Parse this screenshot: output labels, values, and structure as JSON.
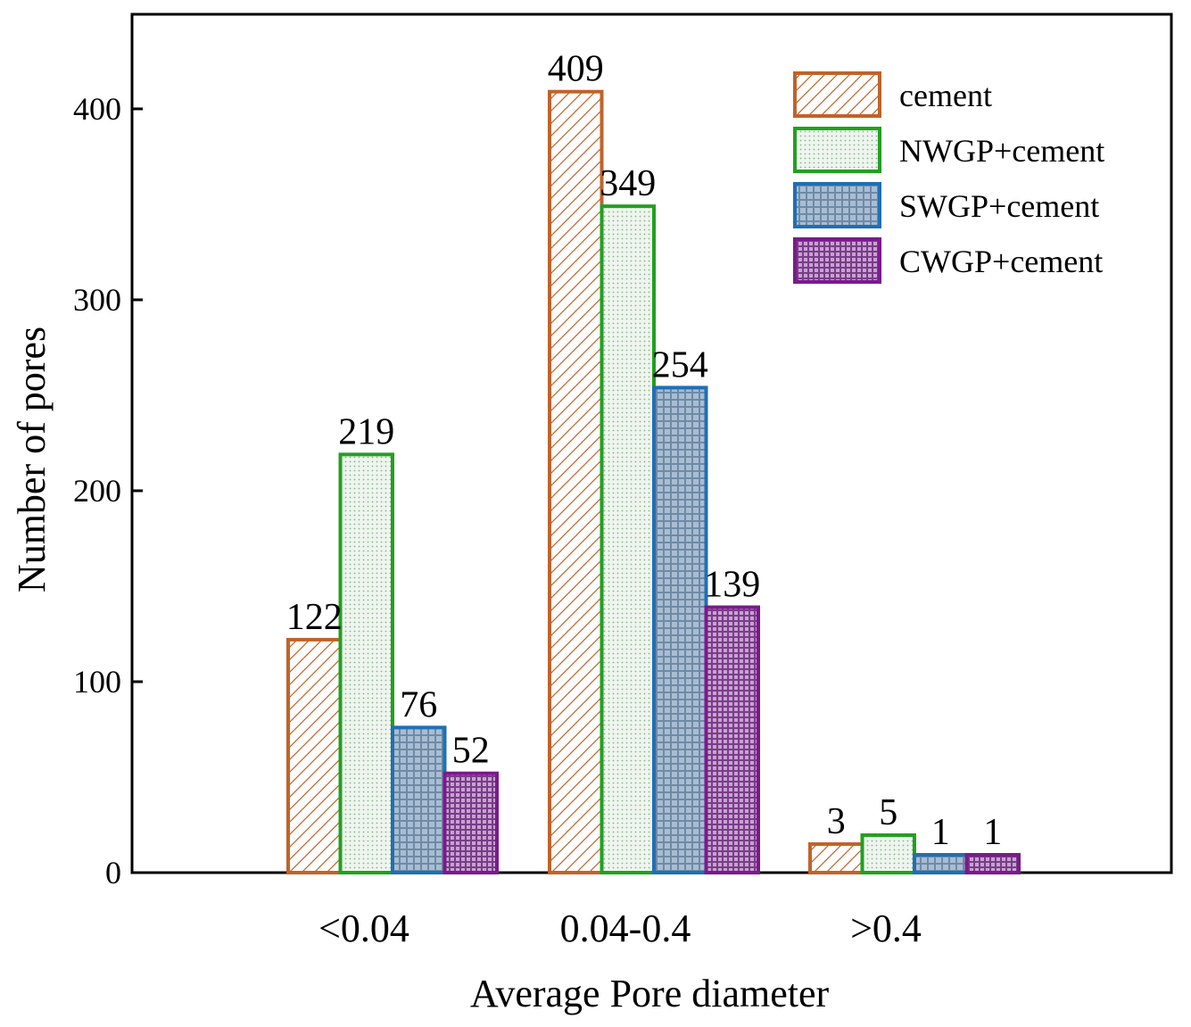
{
  "chart_data": {
    "type": "bar",
    "title": "",
    "xlabel": "Average Pore diameter",
    "ylabel": "Number of pores",
    "categories": [
      "<0.04",
      "0.04-0.4",
      ">0.4"
    ],
    "series": [
      {
        "name": "cement",
        "values": [
          122,
          409,
          3
        ],
        "labels": [
          "122",
          "409",
          "3"
        ],
        "color": "#c0632a",
        "pattern": "diagonal-hatch"
      },
      {
        "name": "NWGP+cement",
        "values": [
          219,
          349,
          5
        ],
        "labels": [
          "219",
          "349",
          "5"
        ],
        "color": "#22a020",
        "pattern": "dots"
      },
      {
        "name": "SWGP+cement",
        "values": [
          76,
          254,
          1
        ],
        "labels": [
          "76",
          "254",
          "1"
        ],
        "color": "#1f6fb5",
        "pattern": "grid"
      },
      {
        "name": "CWGP+cement",
        "values": [
          52,
          139,
          1
        ],
        "labels": [
          "52",
          "139",
          "1"
        ],
        "color": "#7a1a8c",
        "pattern": "dense-grid"
      }
    ],
    "ylim": [
      0,
      450
    ],
    "yticks": [
      0,
      100,
      200,
      300,
      400
    ],
    "legend": "top-right",
    "grid": false
  }
}
